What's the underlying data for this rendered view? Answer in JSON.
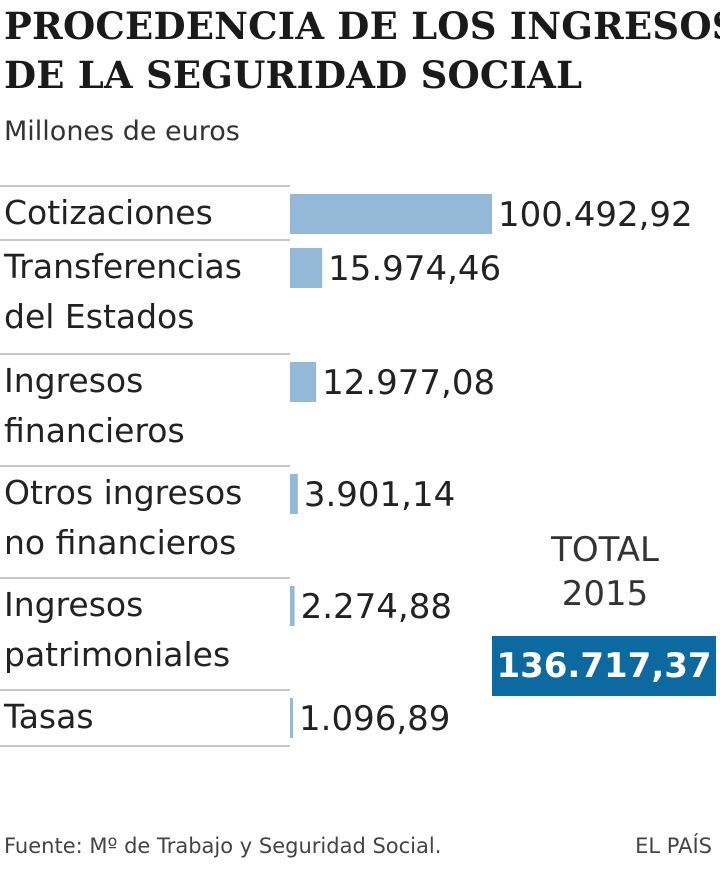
{
  "header": {
    "title_line1": "PROCEDENCIA DE LOS INGRESOS",
    "title_line2": "DE LA SEGURIDAD SOCIAL",
    "subtitle": "Millones de euros"
  },
  "total": {
    "label_line1": "TOTAL",
    "label_line2": "2015",
    "value": "136.717,37"
  },
  "footer": {
    "source": "Fuente: Mº de Trabajo y Seguridad Social.",
    "brand": "EL PAÍS"
  },
  "colors": {
    "bar": "#93b8d8",
    "total_box": "#0d6aa1",
    "divider": "#c8c8c8"
  },
  "chart_data": {
    "type": "bar",
    "orientation": "horizontal",
    "title": "PROCEDENCIA DE LOS INGRESOS DE LA SEGURIDAD SOCIAL",
    "subtitle": "Millones de euros",
    "categories": [
      [
        "Cotizaciones"
      ],
      [
        "Transferencias",
        "del Estados"
      ],
      [
        "Ingresos",
        "financieros"
      ],
      [
        "Otros ingresos",
        "no financieros"
      ],
      [
        "Ingresos",
        "patrimoniales"
      ],
      [
        "Tasas"
      ]
    ],
    "values": [
      100492.92,
      15974.46,
      12977.08,
      3901.14,
      2274.88,
      1096.89
    ],
    "value_labels": [
      "100.492,92",
      "15.974,46",
      "12.977,08",
      "3.901,14",
      "2.274,88",
      "1.096,89"
    ],
    "xlim": [
      0,
      100492.92
    ],
    "grid": false,
    "legend": "none"
  }
}
